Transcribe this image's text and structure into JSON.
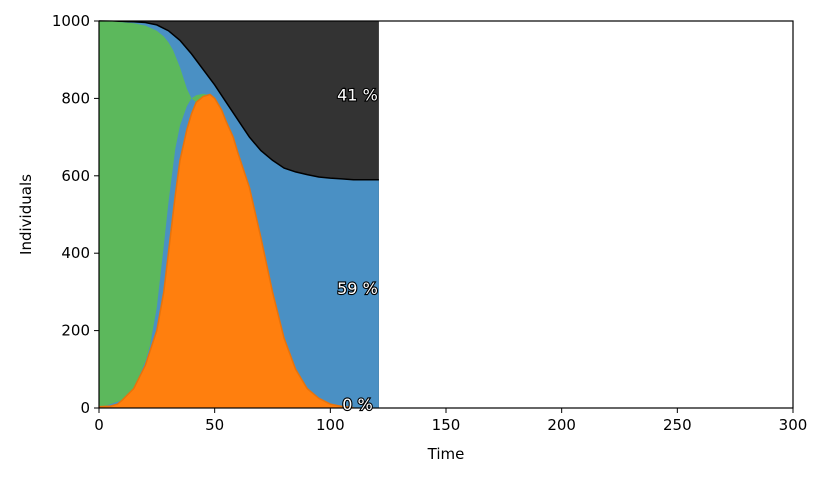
{
  "chart_data": {
    "type": "area",
    "title": "",
    "xlabel": "Time",
    "ylabel": "Individuals",
    "xlim": [
      0,
      300
    ],
    "ylim": [
      0,
      1000
    ],
    "xticks": [
      0,
      50,
      100,
      150,
      200,
      250,
      300
    ],
    "yticks": [
      0,
      200,
      400,
      600,
      800,
      1000
    ],
    "grid": false,
    "legend": "none",
    "colors": {
      "susceptible": "#5cb85c",
      "infected": "#ff7f0e",
      "recovered": "#4a90c4",
      "dead": "#333333",
      "background": "#ffffff"
    },
    "time_end": 121,
    "susceptible_curve": {
      "x": [
        0,
        5,
        10,
        15,
        20,
        25,
        28,
        30,
        32,
        35,
        38,
        40,
        42,
        45,
        48,
        50
      ],
      "y": [
        1000,
        999,
        997,
        994,
        988,
        975,
        960,
        945,
        925,
        880,
        825,
        800,
        790,
        770,
        730,
        700
      ]
    },
    "infected_curve": {
      "x": [
        0,
        5,
        8,
        10,
        15,
        20,
        25,
        28,
        30,
        33,
        35,
        38,
        40,
        42,
        45,
        48,
        50,
        53,
        55,
        58,
        60,
        65,
        70,
        75,
        80,
        85,
        90,
        95,
        100,
        105,
        110
      ],
      "y": [
        3,
        5,
        10,
        20,
        50,
        110,
        200,
        300,
        400,
        550,
        640,
        720,
        760,
        790,
        805,
        810,
        800,
        770,
        740,
        700,
        660,
        570,
        440,
        300,
        180,
        100,
        50,
        25,
        10,
        4,
        1
      ]
    },
    "susceptible_lower_curve": {
      "x": [
        0,
        10,
        15,
        20,
        22,
        25,
        28,
        30,
        33,
        35,
        38,
        40,
        42,
        45,
        48,
        50
      ],
      "y": [
        0,
        20,
        50,
        120,
        160,
        260,
        420,
        530,
        670,
        730,
        780,
        800,
        808,
        812,
        808,
        800
      ]
    },
    "dead_boundary": {
      "x": [
        0,
        10,
        15,
        20,
        25,
        30,
        35,
        40,
        45,
        50,
        55,
        60,
        65,
        70,
        75,
        80,
        85,
        90,
        95,
        100,
        105,
        110,
        115,
        121
      ],
      "y": [
        1000,
        999,
        998,
        996,
        990,
        975,
        950,
        915,
        875,
        835,
        790,
        745,
        700,
        665,
        640,
        620,
        610,
        603,
        597,
        594,
        592,
        590,
        590,
        590
      ]
    },
    "annotations": [
      {
        "text": "41 %",
        "x": 110,
        "y": 810
      },
      {
        "text": "59 %",
        "x": 110,
        "y": 310
      },
      {
        "text": "0 %",
        "x": 110,
        "y": 10
      }
    ]
  }
}
